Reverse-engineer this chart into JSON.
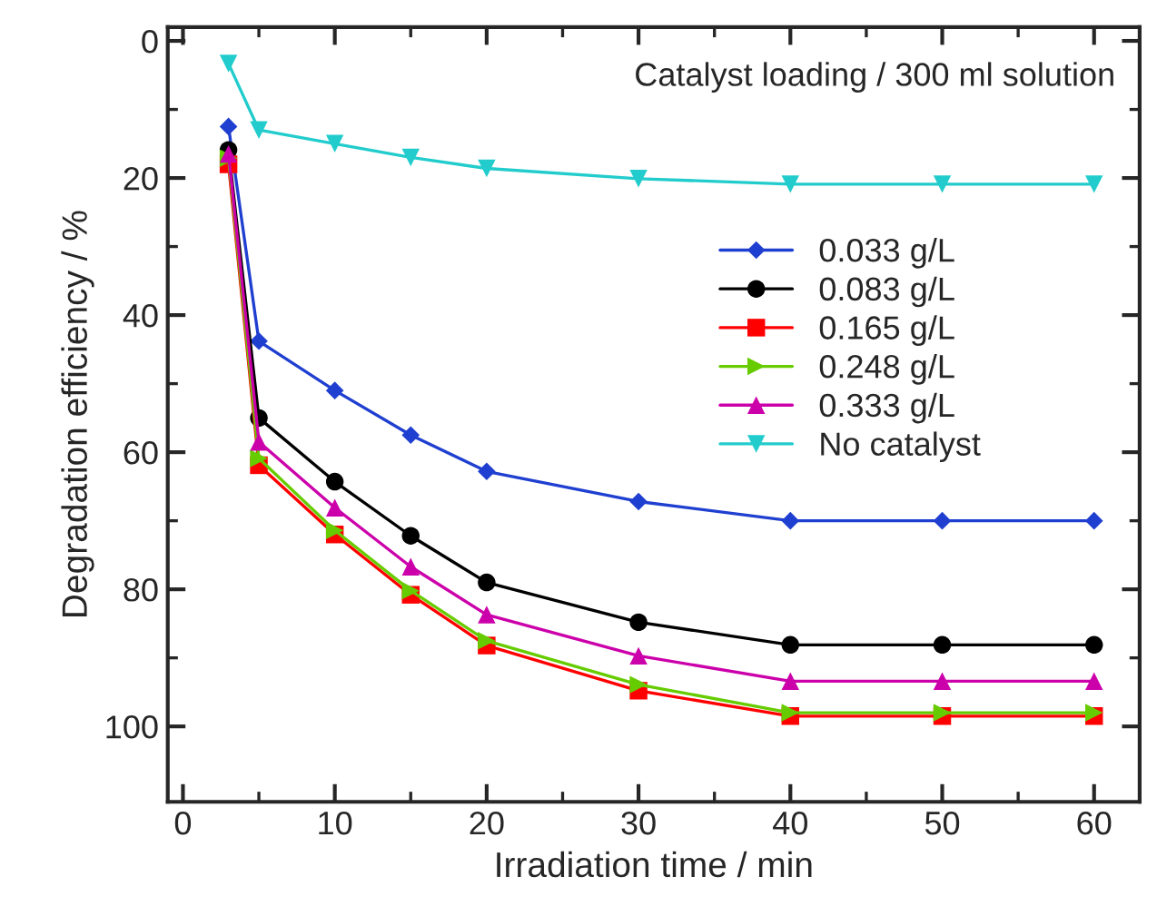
{
  "chart_data": {
    "type": "line",
    "xlabel": "Irradiation time / min",
    "ylabel": "Degradation efficiency / %",
    "annotations": [
      "Catalyst loading / 300 ml solution"
    ],
    "x": [
      3,
      5,
      10,
      15,
      20,
      30,
      40,
      50,
      60
    ],
    "series": [
      {
        "name": "0.033 g/L",
        "color": "#1f3fd0",
        "marker": "diamond",
        "values": [
          12.5,
          43.8,
          51.0,
          57.5,
          62.8,
          67.2,
          70.0,
          70.0,
          70.0
        ]
      },
      {
        "name": "0.083 g/L",
        "color": "#000000",
        "marker": "circle",
        "values": [
          15.9,
          55.0,
          64.3,
          72.2,
          79.0,
          84.8,
          88.1,
          88.1,
          88.1
        ]
      },
      {
        "name": "0.165 g/L",
        "color": "#ff0000",
        "marker": "square",
        "values": [
          18.0,
          61.9,
          72.0,
          80.8,
          88.2,
          94.8,
          98.5,
          98.5,
          98.5
        ]
      },
      {
        "name": "0.248 g/L",
        "color": "#66cc00",
        "marker": "triangle-right",
        "values": [
          17.1,
          60.9,
          71.4,
          80.2,
          87.5,
          93.9,
          98.0,
          98.0,
          98.0
        ]
      },
      {
        "name": "0.333 g/L",
        "color": "#cc00aa",
        "marker": "triangle",
        "values": [
          16.5,
          58.5,
          68.1,
          76.7,
          83.7,
          89.7,
          93.4,
          93.4,
          93.4
        ]
      },
      {
        "name": "No catalyst",
        "color": "#22cccc",
        "marker": "triangle-down",
        "values": [
          3.3,
          13.0,
          15.0,
          17.0,
          18.6,
          20.1,
          20.9,
          20.9,
          20.9
        ]
      }
    ],
    "xlim": [
      -1,
      63
    ],
    "xticks": [
      0,
      10,
      20,
      30,
      40,
      50,
      60
    ],
    "ylim": [
      111,
      -2
    ],
    "yticks": [
      0,
      20,
      40,
      60,
      80,
      100
    ],
    "grid": false,
    "legend": "top right",
    "line_style": "solid"
  }
}
